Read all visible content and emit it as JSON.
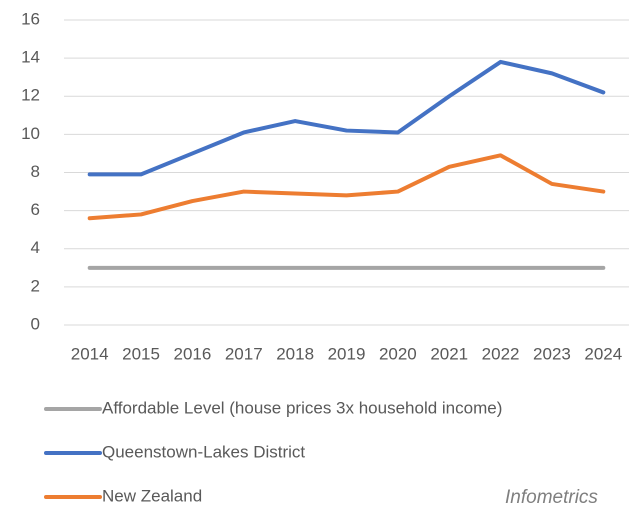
{
  "chart_data": {
    "type": "line",
    "categories": [
      "2014",
      "2015",
      "2016",
      "2017",
      "2018",
      "2019",
      "2020",
      "2021",
      "2022",
      "2023",
      "2024"
    ],
    "series": [
      {
        "name": "Affordable Level (house prices 3x household income)",
        "color": "#a5a5a5",
        "values": [
          3,
          3,
          3,
          3,
          3,
          3,
          3,
          3,
          3,
          3,
          3
        ]
      },
      {
        "name": "Queenstown-Lakes District",
        "color": "#4472c4",
        "values": [
          7.9,
          7.9,
          9.0,
          10.1,
          10.7,
          10.2,
          10.1,
          12.0,
          13.8,
          13.2,
          12.2
        ]
      },
      {
        "name": "New Zealand",
        "color": "#ed7d31",
        "values": [
          5.6,
          5.8,
          6.5,
          7.0,
          6.9,
          6.8,
          7.0,
          8.3,
          8.9,
          7.4,
          7.0
        ]
      }
    ],
    "ylim": [
      0,
      16
    ],
    "yticks": [
      0,
      2,
      4,
      6,
      8,
      10,
      12,
      14,
      16
    ],
    "grid": true,
    "legend": "bottom",
    "annotation": "Infometrics"
  }
}
